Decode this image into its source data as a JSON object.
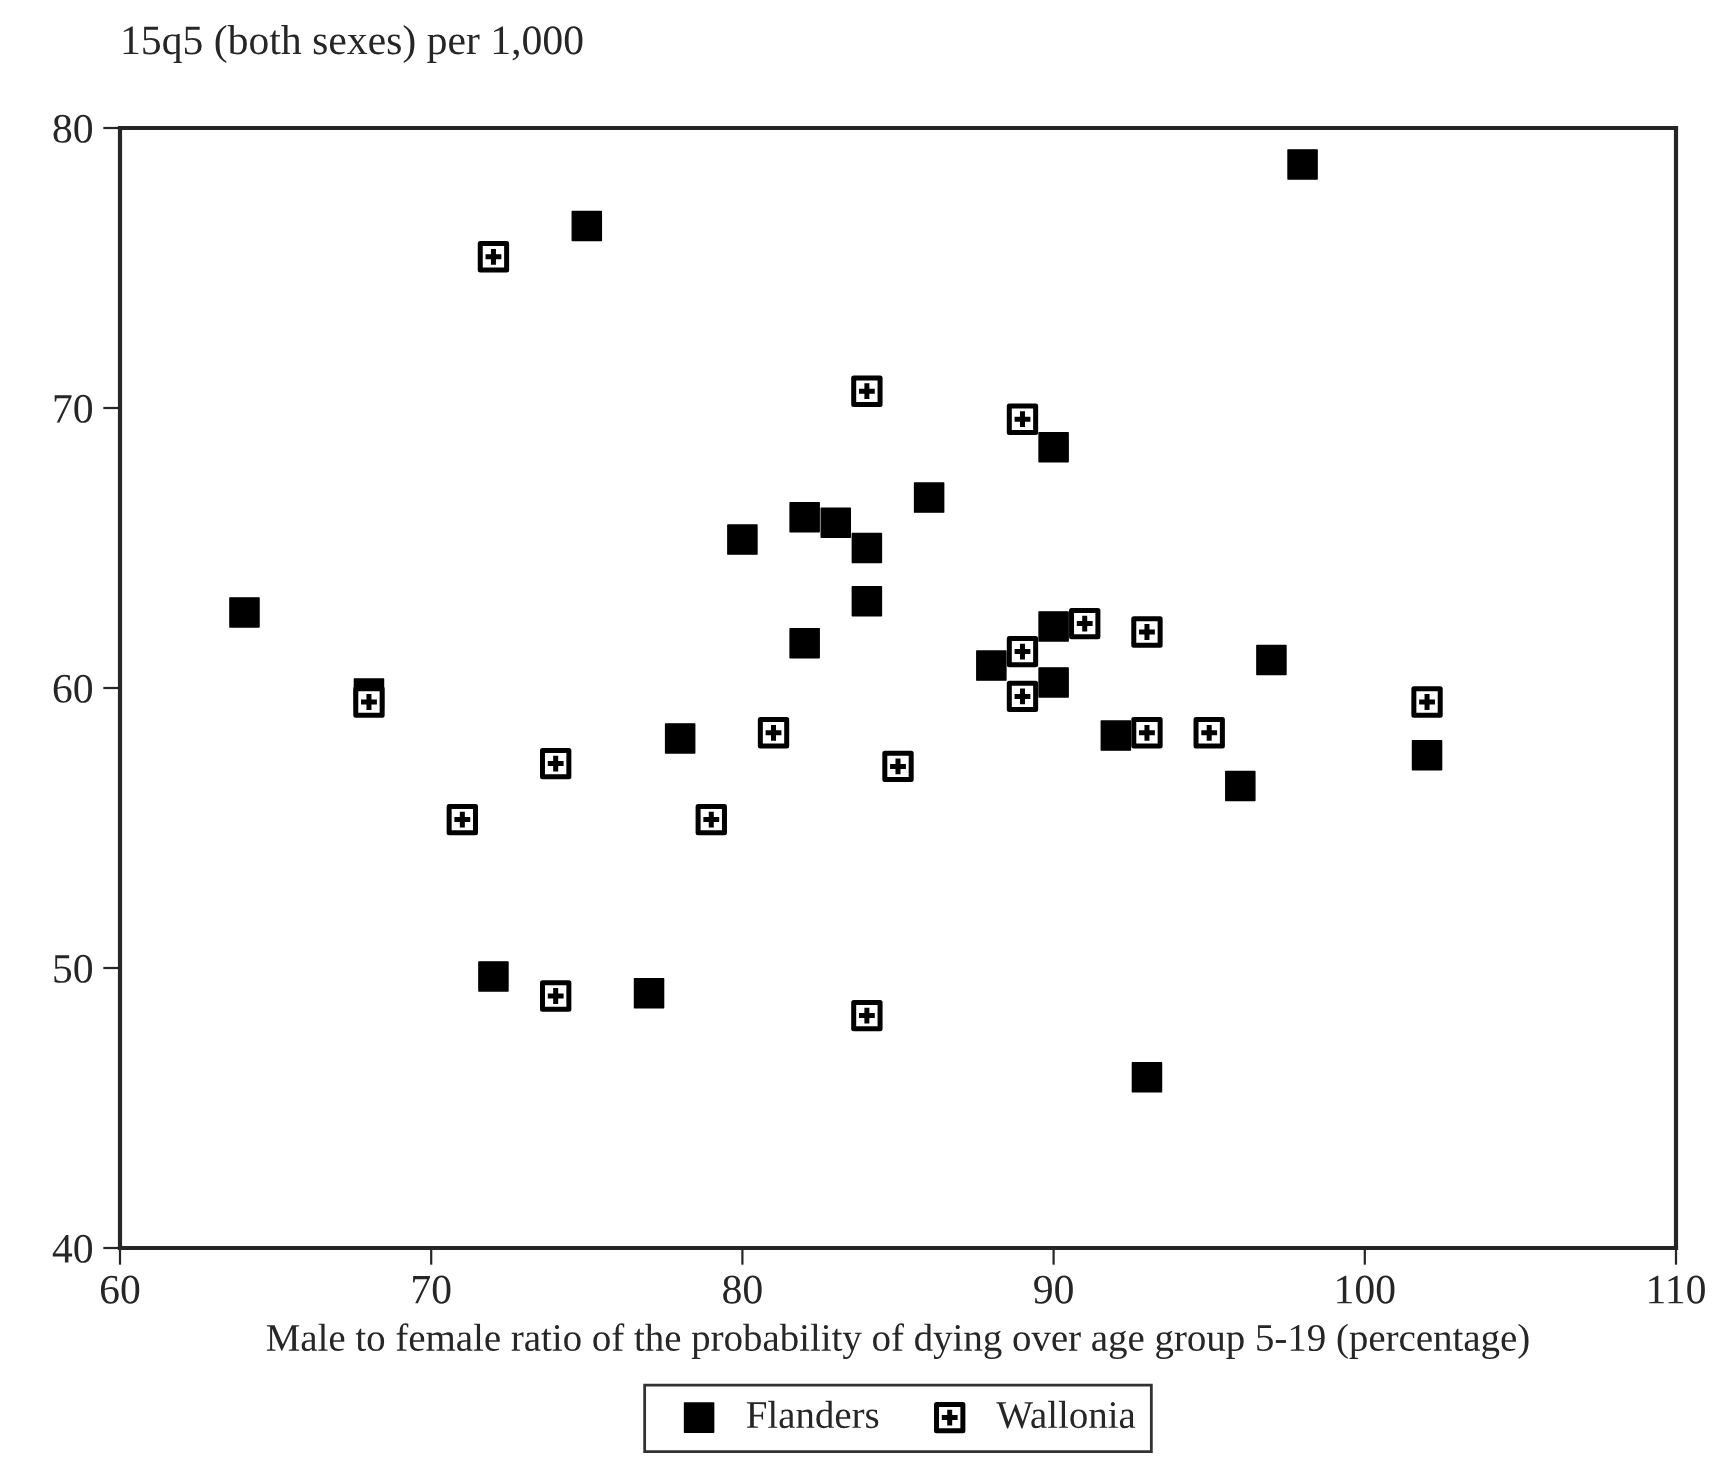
{
  "chart_data": {
    "type": "scatter",
    "ylabel": "15q5 (both sexes) per 1,000",
    "xlabel": "Male to female ratio of the probability of dying over age group 5-19 (percentage)",
    "xlim": [
      60,
      110
    ],
    "xticks": [
      60,
      70,
      80,
      90,
      100,
      110
    ],
    "ylim": [
      40,
      80
    ],
    "yticks": [
      40,
      50,
      60,
      70,
      80
    ],
    "grid": false,
    "legend": "bottom",
    "series": [
      {
        "name": "Flanders",
        "color": "#000000",
        "marker": "square",
        "x": [
          64,
          68,
          72,
          75,
          77,
          78,
          80,
          82,
          82,
          83,
          84,
          84,
          86,
          88,
          90,
          90,
          90,
          92,
          93,
          96,
          97,
          98,
          102
        ],
        "values": [
          62.7,
          59.8,
          49.7,
          76.5,
          49.1,
          58.2,
          65.3,
          66.1,
          61.6,
          65.9,
          65.0,
          63.1,
          66.8,
          60.8,
          68.6,
          62.2,
          60.2,
          58.3,
          46.1,
          56.5,
          61.0,
          78.7,
          57.6
        ]
      },
      {
        "name": "Wallonia",
        "color": "#000000",
        "marker": "cross",
        "x": [
          68,
          71,
          72,
          74,
          74,
          79,
          81,
          84,
          84,
          85,
          89,
          89,
          89,
          91,
          93,
          93,
          95,
          102
        ],
        "values": [
          59.5,
          55.3,
          75.4,
          57.3,
          49.0,
          55.3,
          58.4,
          70.6,
          48.3,
          57.2,
          69.6,
          61.3,
          59.7,
          62.3,
          62.0,
          58.4,
          58.4,
          59.5
        ]
      }
    ]
  }
}
